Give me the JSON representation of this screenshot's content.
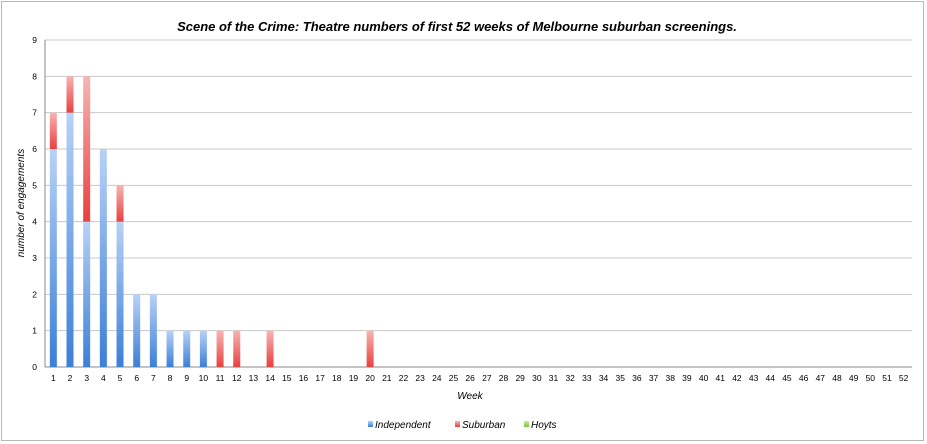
{
  "chart_data": {
    "type": "bar",
    "stacked": true,
    "title": "Scene of the Crime: Theatre numbers of first 52 weeks of Melbourne suburban screenings.",
    "xlabel": "Week",
    "ylabel": "number of engagements",
    "ylim": [
      0,
      9
    ],
    "yticks": [
      "0",
      "1",
      "2",
      "3",
      "4",
      "5",
      "6",
      "7",
      "8",
      "9"
    ],
    "grid": true,
    "legend_position": "bottom",
    "categories": [
      "1",
      "2",
      "3",
      "4",
      "5",
      "6",
      "7",
      "8",
      "9",
      "10",
      "11",
      "12",
      "13",
      "14",
      "15",
      "16",
      "17",
      "18",
      "19",
      "20",
      "21",
      "22",
      "23",
      "24",
      "25",
      "26",
      "27",
      "28",
      "29",
      "30",
      "31",
      "32",
      "33",
      "34",
      "35",
      "36",
      "37",
      "38",
      "39",
      "40",
      "41",
      "42",
      "43",
      "44",
      "45",
      "46",
      "47",
      "48",
      "49",
      "50",
      "51",
      "52"
    ],
    "series": [
      {
        "name": "Independent",
        "color": "#3b7fd8",
        "light": "#b8d2f7",
        "values": [
          6,
          7,
          4,
          6,
          4,
          2,
          2,
          1,
          1,
          1,
          0,
          0,
          0,
          0,
          0,
          0,
          0,
          0,
          0,
          0,
          0,
          0,
          0,
          0,
          0,
          0,
          0,
          0,
          0,
          0,
          0,
          0,
          0,
          0,
          0,
          0,
          0,
          0,
          0,
          0,
          0,
          0,
          0,
          0,
          0,
          0,
          0,
          0,
          0,
          0,
          0,
          0
        ]
      },
      {
        "name": "Suburban",
        "color": "#e8403f",
        "light": "#f8b4b2",
        "values": [
          1,
          1,
          4,
          0,
          1,
          0,
          0,
          0,
          0,
          0,
          1,
          1,
          0,
          1,
          0,
          0,
          0,
          0,
          0,
          1,
          0,
          0,
          0,
          0,
          0,
          0,
          0,
          0,
          0,
          0,
          0,
          0,
          0,
          0,
          0,
          0,
          0,
          0,
          0,
          0,
          0,
          0,
          0,
          0,
          0,
          0,
          0,
          0,
          0,
          0,
          0,
          0
        ]
      },
      {
        "name": "Hoyts",
        "color": "#7cc43a",
        "light": "#c9eba4",
        "values": [
          0,
          0,
          0,
          0,
          0,
          0,
          0,
          0,
          0,
          0,
          0,
          0,
          0,
          0,
          0,
          0,
          0,
          0,
          0,
          0,
          0,
          0,
          0,
          0,
          0,
          0,
          0,
          0,
          0,
          0,
          0,
          0,
          0,
          0,
          0,
          0,
          0,
          0,
          0,
          0,
          0,
          0,
          0,
          0,
          0,
          0,
          0,
          0,
          0,
          0,
          0,
          0
        ]
      }
    ]
  }
}
